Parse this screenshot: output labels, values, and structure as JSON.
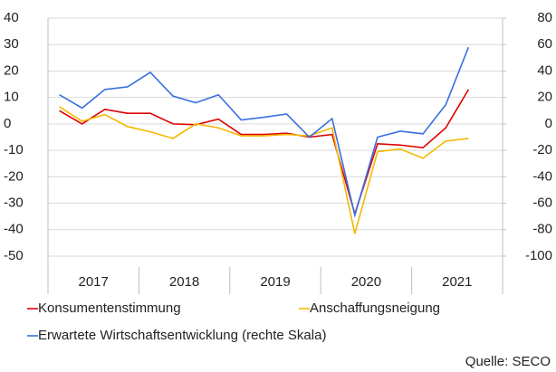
{
  "chart_data": {
    "type": "line",
    "groups": [
      {
        "label": "2017",
        "size": 4
      },
      {
        "label": "2018",
        "size": 4
      },
      {
        "label": "2019",
        "size": 4
      },
      {
        "label": "2020",
        "size": 4
      },
      {
        "label": "2021",
        "size": 4
      }
    ],
    "series": [
      {
        "name": "Konsumentenstimmung",
        "color": "#e00000",
        "values": [
          5,
          0,
          5.5,
          4,
          4,
          0,
          -0.3,
          1.8,
          -4,
          -4,
          -3.5,
          -5,
          -4,
          -34,
          -7.5,
          -8,
          -9,
          -1.5,
          13,
          null
        ]
      },
      {
        "name": "Anschaffungsneigung",
        "color": "#f5b800",
        "values": [
          6.5,
          1,
          3.5,
          -1,
          -3,
          -5.5,
          0,
          -1.5,
          -4.5,
          -4.5,
          -4,
          -4.5,
          -1.5,
          -41.5,
          -10.5,
          -9.5,
          -13,
          -6.5,
          -5.5,
          null
        ]
      },
      {
        "name": "Erwartete Wirtschaftsentwicklung (rechte Skala)",
        "color": "#3a6fe0",
        "axis": "y2",
        "values": [
          22,
          12,
          26,
          28,
          39,
          21,
          16,
          22,
          3,
          5,
          7.5,
          -10,
          4,
          -69,
          -10,
          -5.5,
          -7.5,
          14.5,
          58,
          null
        ]
      }
    ],
    "ylim": [
      -50,
      40
    ],
    "yticks": [
      -50,
      -40,
      -30,
      -20,
      -10,
      0,
      10,
      20,
      30,
      40
    ],
    "y2lim": [
      -100,
      80
    ],
    "y2ticks": [
      -100,
      -80,
      -60,
      -40,
      -20,
      0,
      20,
      40,
      60,
      80
    ],
    "grid": true,
    "source": "Quelle: SECO"
  }
}
